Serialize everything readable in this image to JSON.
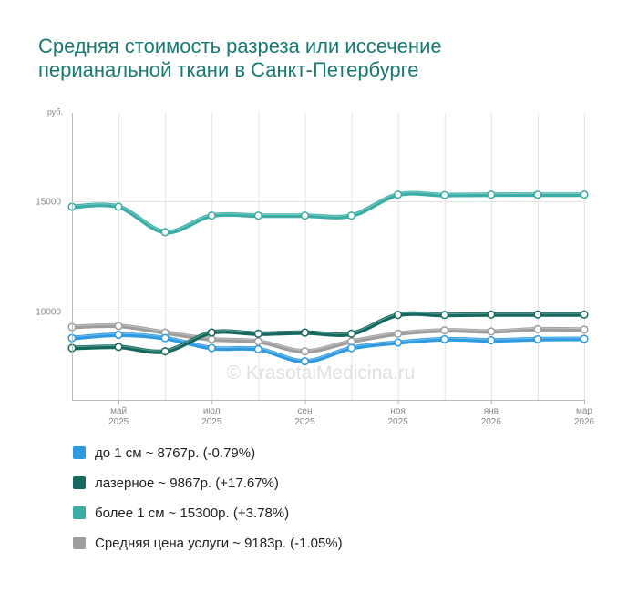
{
  "title_lines": [
    "Средняя стоимость разреза или иссечение",
    "перианальной ткани в Санкт-Петербурге"
  ],
  "watermark": "© KrasotaiMedicina.ru",
  "chart_data": {
    "type": "line",
    "title": "Средняя стоимость разреза или иссечение перианальной ткани в Санкт-Петербурге",
    "ylabel": "руб.",
    "ylim": [
      6000,
      19000
    ],
    "yticks": [
      "15000",
      "10000"
    ],
    "ytick_values": [
      15000,
      10000
    ],
    "x_ticks": [
      {
        "index": 1,
        "month": "май",
        "year": "2025"
      },
      {
        "index": 3,
        "month": "июл",
        "year": "2025"
      },
      {
        "index": 5,
        "month": "сен",
        "year": "2025"
      },
      {
        "index": 7,
        "month": "ноя",
        "year": "2025"
      },
      {
        "index": 9,
        "month": "янв",
        "year": "2026"
      },
      {
        "index": 11,
        "month": "мар",
        "year": "2026"
      }
    ],
    "point_count": 12,
    "series": [
      {
        "name": "до 1 см",
        "color": "#2e9be0",
        "values": [
          8800,
          8950,
          8800,
          8350,
          8300,
          7750,
          8350,
          8600,
          8750,
          8700,
          8750,
          8767
        ]
      },
      {
        "name": "лазерное",
        "color": "#15695f",
        "values": [
          8350,
          8400,
          8200,
          9050,
          9000,
          9050,
          9000,
          9850,
          9850,
          9867,
          9867,
          9867
        ]
      },
      {
        "name": "более 1 см",
        "color": "#3aada4",
        "values": [
          14750,
          14750,
          13600,
          14350,
          14350,
          14350,
          14350,
          15300,
          15280,
          15300,
          15300,
          15300
        ]
      },
      {
        "name": "Средняя цена услуги",
        "color": "#9e9e9e",
        "values": [
          9300,
          9350,
          9050,
          8750,
          8650,
          8200,
          8650,
          9000,
          9150,
          9100,
          9200,
          9183
        ]
      }
    ]
  },
  "legend": [
    {
      "name": "до 1 см",
      "summary": "~ 8767р. (-0.79%)",
      "color": "#2e9be0"
    },
    {
      "name": "лазерное",
      "summary": "~ 9867р. (+17.67%)",
      "color": "#15695f"
    },
    {
      "name": "более 1 см",
      "summary": "~ 15300р. (+3.78%)",
      "color": "#3aada4"
    },
    {
      "name": "Средняя цена услуги",
      "summary": "~ 9183р. (-1.05%)",
      "color": "#9e9e9e"
    }
  ]
}
